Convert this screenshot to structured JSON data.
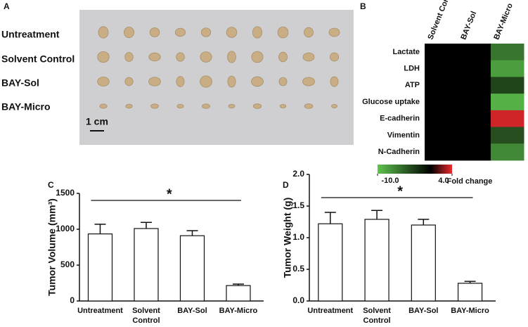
{
  "panel_labels": [
    "A",
    "B",
    "C",
    "D"
  ],
  "photo": {
    "groups": [
      "Untreatment",
      "Solvent Control",
      "BAY-Sol",
      "BAY-Micro"
    ],
    "scale_bar": "1 cm"
  },
  "chart_data": [
    {
      "type": "heatmap",
      "columns": [
        "Solvent Control",
        "BAY-Sol",
        "BAY-Micro"
      ],
      "rows": [
        "Lactate",
        "LDH",
        "ATP",
        "Glucose uptake",
        "E-cadherin",
        "Vimentin",
        "N-Cadherin"
      ],
      "values": [
        [
          0,
          0,
          -6
        ],
        [
          0,
          0,
          -8
        ],
        [
          0,
          0,
          -3.5
        ],
        [
          0,
          0,
          -9
        ],
        [
          0,
          0,
          3.5
        ],
        [
          0,
          0,
          -4
        ],
        [
          0,
          0,
          -7
        ]
      ],
      "colorbar_label": "Fold change",
      "clim": [
        -10,
        4
      ],
      "cticks": [
        {
          "value": -10,
          "label": "-10.0"
        },
        {
          "value": 4,
          "label": "4.0"
        }
      ],
      "colors": {
        "low": "#5ec44e",
        "mid": "#000000",
        "high": "#ed2a2e"
      }
    },
    {
      "type": "bar",
      "ylabel": "Tumor Volume (mm³)",
      "categories": [
        "Untreatment",
        "Solvent Control",
        "BAY-Sol",
        "BAY-Micro"
      ],
      "values": [
        935,
        1010,
        910,
        215
      ],
      "errors": [
        135,
        85,
        70,
        20
      ],
      "ylim": [
        0,
        1500
      ],
      "yticks": [
        0,
        500,
        1000,
        1500
      ],
      "annotation": "*",
      "color": "#ffffff"
    },
    {
      "type": "bar",
      "ylabel": "Tumor Weight (g)",
      "categories": [
        "Untreatment",
        "Solvent Control",
        "BAY-Sol",
        "BAY-Micro"
      ],
      "values": [
        1.22,
        1.29,
        1.2,
        0.28
      ],
      "errors": [
        0.18,
        0.14,
        0.09,
        0.03
      ],
      "ylim": [
        0,
        2
      ],
      "yticks": [
        {
          "value": 0,
          "label": "0.0"
        },
        {
          "value": 0.5,
          "label": "0.5"
        },
        {
          "value": 1,
          "label": "1.0"
        },
        {
          "value": 1.5,
          "label": "1.5"
        },
        {
          "value": 2,
          "label": "2.0"
        }
      ],
      "annotation": "*",
      "color": "#ffffff"
    }
  ]
}
